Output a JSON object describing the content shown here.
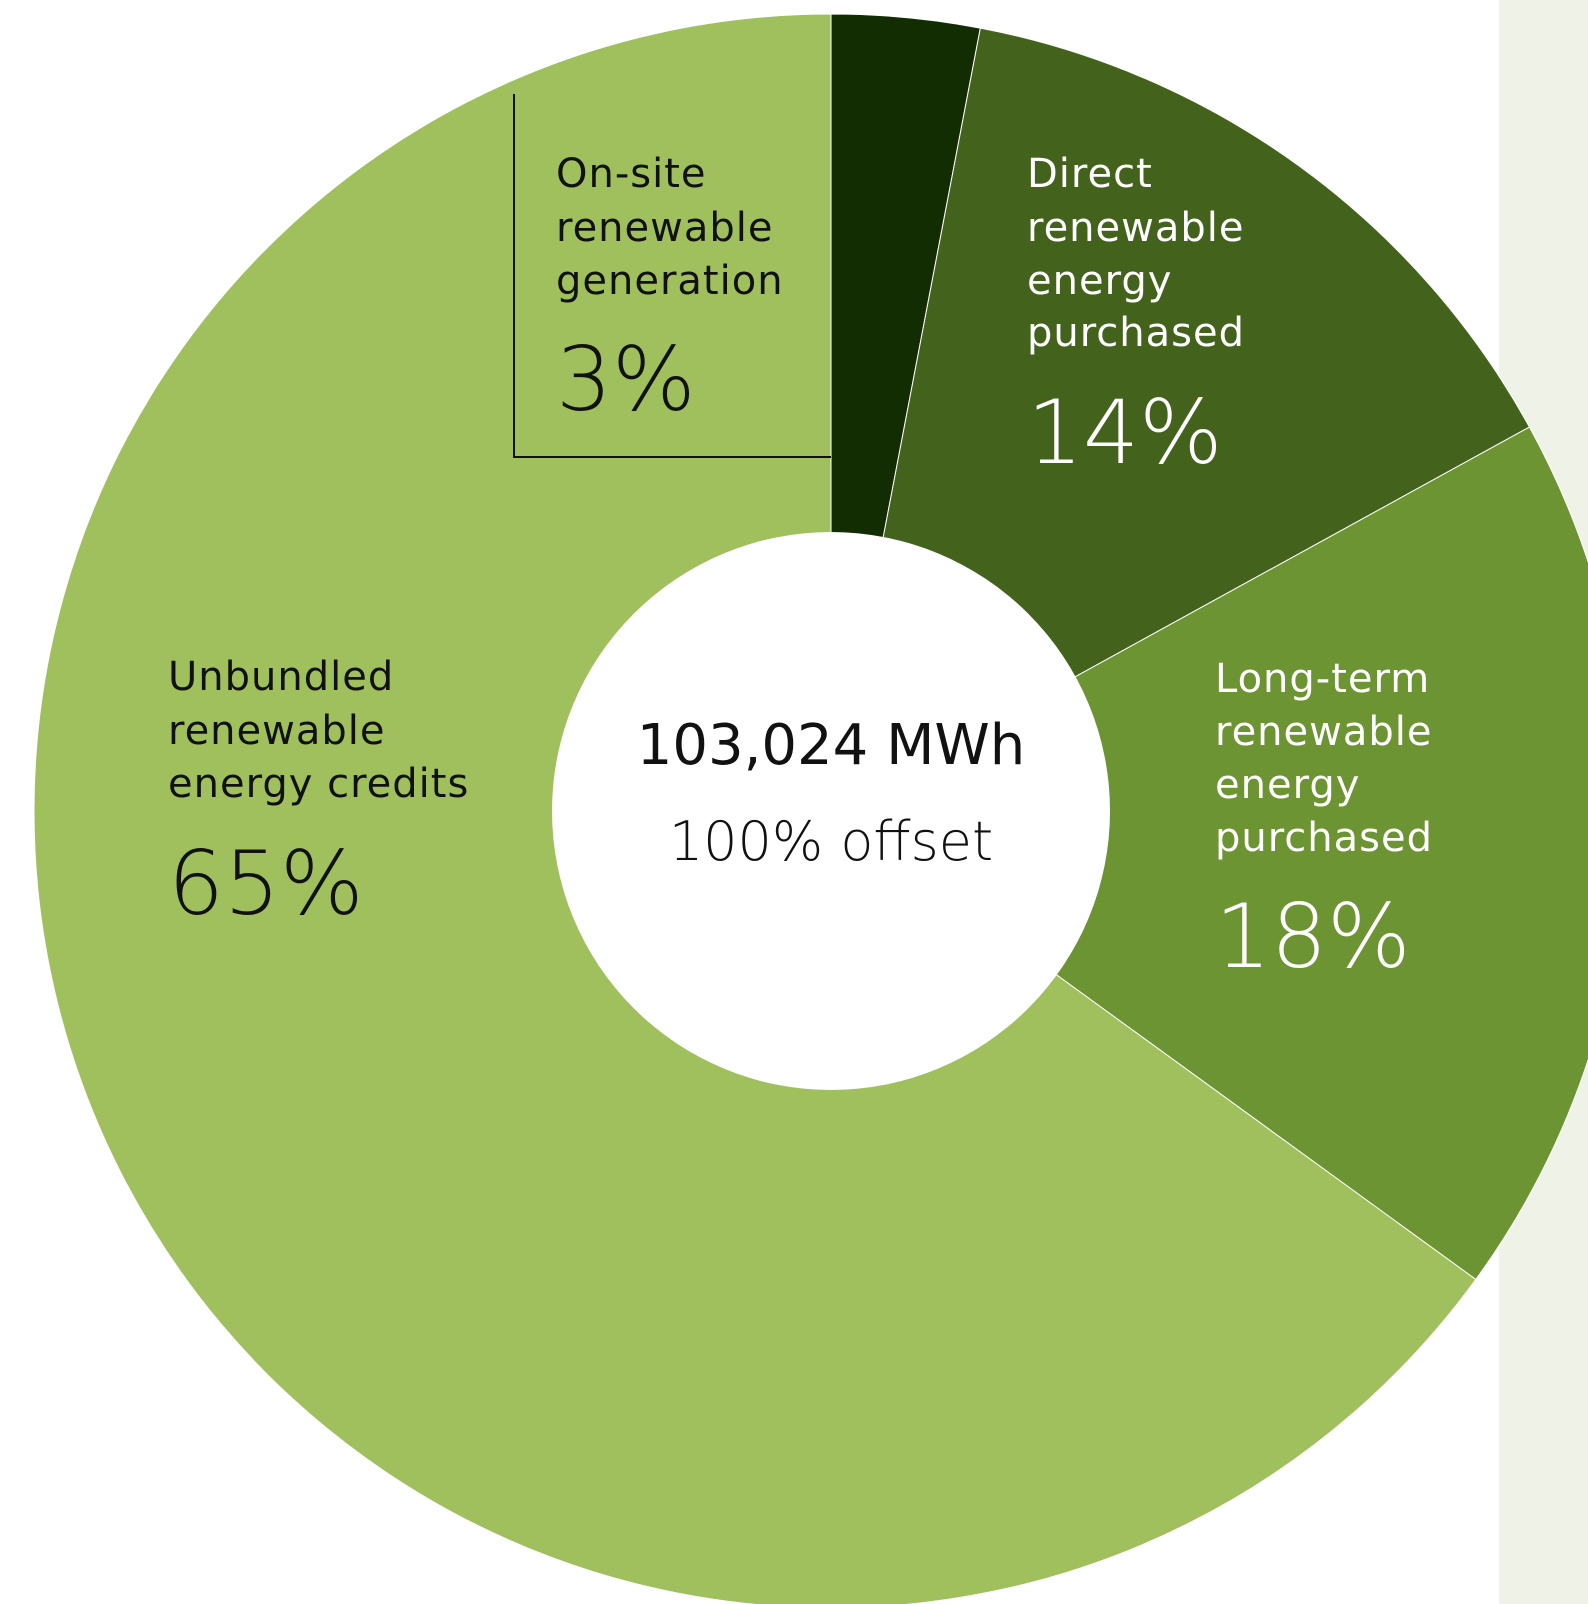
{
  "chart_data": {
    "type": "pie",
    "title": "",
    "center": {
      "total": "103,024 MWh",
      "subtitle": "100% offset"
    },
    "slices": [
      {
        "label_lines": [
          "On-site",
          "renewable",
          "generation"
        ],
        "label": "On-site renewable generation",
        "value": 3,
        "value_label": "3%",
        "color": "#132d03",
        "text_color": "#111111"
      },
      {
        "label_lines": [
          "Direct",
          "renewable",
          "energy",
          "purchased"
        ],
        "label": "Direct renewable energy purchased",
        "value": 14,
        "value_label": "14%",
        "color": "#43621c",
        "text_color": "#ffffff"
      },
      {
        "label_lines": [
          "Long-term",
          "renewable",
          "energy",
          "purchased"
        ],
        "label": "Long-term renewable energy purchased",
        "value": 18,
        "value_label": "18%",
        "color": "#6d9432",
        "text_color": "#ffffff"
      },
      {
        "label_lines": [
          "Unbundled",
          "renewable",
          "energy credits"
        ],
        "label": "Unbundled renewable energy credits",
        "value": 65,
        "value_label": "65%",
        "color": "#a0c05e",
        "text_color": "#111111"
      }
    ],
    "center_color": "#ffffff"
  }
}
